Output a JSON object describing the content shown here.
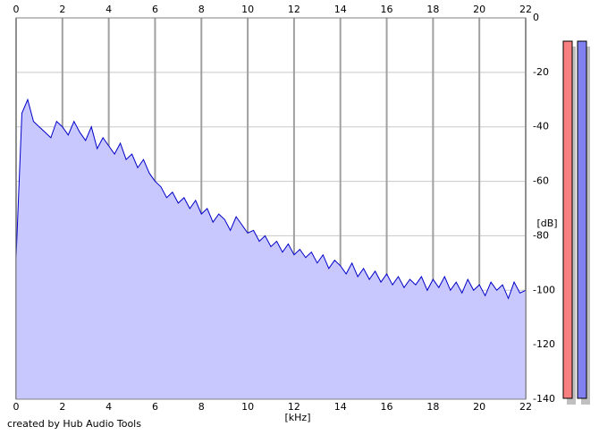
{
  "chart_data": {
    "type": "area",
    "x_label": "[kHz]",
    "y_label": "[dB]",
    "footer": "created by Hub Audio Tools",
    "x": [
      0,
      0.25,
      0.5,
      0.75,
      1,
      1.25,
      1.5,
      1.75,
      2,
      2.25,
      2.5,
      2.75,
      3,
      3.25,
      3.5,
      3.75,
      4,
      4.25,
      4.5,
      4.75,
      5,
      5.25,
      5.5,
      5.75,
      6,
      6.25,
      6.5,
      6.75,
      7,
      7.25,
      7.5,
      7.75,
      8,
      8.25,
      8.5,
      8.75,
      9,
      9.25,
      9.5,
      9.75,
      10,
      10.25,
      10.5,
      10.75,
      11,
      11.25,
      11.5,
      11.75,
      12,
      12.25,
      12.5,
      12.75,
      13,
      13.25,
      13.5,
      13.75,
      14,
      14.25,
      14.5,
      14.75,
      15,
      15.25,
      15.5,
      15.75,
      16,
      16.25,
      16.5,
      16.75,
      17,
      17.25,
      17.5,
      17.75,
      18,
      18.25,
      18.5,
      18.75,
      19,
      19.25,
      19.5,
      19.75,
      20,
      20.25,
      20.5,
      20.75,
      21,
      21.25,
      21.5,
      21.75,
      22
    ],
    "series": [
      {
        "color": "#0000c8",
        "fill": "#c8c8ff",
        "values": [
          -88,
          -35,
          -30,
          -38,
          -40,
          -42,
          -44,
          -38,
          -40,
          -43,
          -38,
          -42,
          -45,
          -40,
          -48,
          -44,
          -47,
          -50,
          -46,
          -52,
          -50,
          -55,
          -52,
          -57,
          -60,
          -62,
          -66,
          -64,
          -68,
          -66,
          -70,
          -67,
          -72,
          -70,
          -75,
          -72,
          -74,
          -78,
          -73,
          -76,
          -79,
          -78,
          -82,
          -80,
          -84,
          -82,
          -86,
          -83,
          -87,
          -85,
          -88,
          -86,
          -90,
          -87,
          -92,
          -89,
          -91,
          -94,
          -90,
          -95,
          -92,
          -96,
          -93,
          -97,
          -94,
          -98,
          -95,
          -99,
          -96,
          -98,
          -95,
          -100,
          -96,
          -99,
          -95,
          -100,
          -97,
          -101,
          -96,
          -100,
          -98,
          -102,
          -97,
          -100,
          -98,
          -103,
          -97,
          -101,
          -100
        ]
      }
    ],
    "xlim": [
      0,
      22
    ],
    "xticks": [
      0,
      2,
      4,
      6,
      8,
      10,
      12,
      14,
      16,
      18,
      20,
      22
    ],
    "ylim": [
      -140,
      0
    ],
    "yticks": [
      0,
      -20,
      -40,
      -60,
      -80,
      -100,
      -120,
      -140
    ],
    "grid": true
  }
}
